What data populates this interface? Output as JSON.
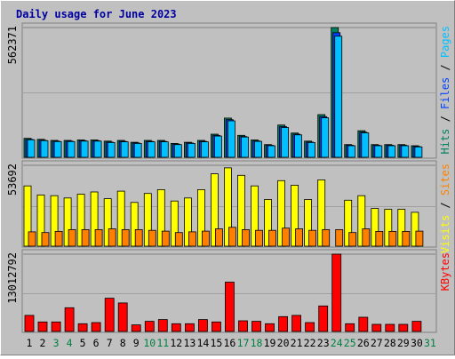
{
  "chart_data": {
    "type": "bar",
    "title": "Daily usage for June 2023",
    "days": [
      "1",
      "2",
      "3",
      "4",
      "5",
      "6",
      "7",
      "8",
      "9",
      "10",
      "11",
      "12",
      "13",
      "14",
      "15",
      "16",
      "17",
      "18",
      "19",
      "20",
      "21",
      "22",
      "23",
      "24",
      "25",
      "26",
      "27",
      "28",
      "29",
      "30",
      "31"
    ],
    "weekend_days": [
      "3",
      "4",
      "10",
      "11",
      "17",
      "18",
      "24",
      "25",
      "31"
    ],
    "colors": {
      "hits": "#00805c",
      "files": "#0040ff",
      "pages": "#00c0ff",
      "visits": "#ffff00",
      "sites": "#ff8000",
      "kbytes": "#ff0000",
      "weekend_label": "#008040"
    },
    "panels": [
      {
        "id": "pages-files-hits",
        "max_label": "562371",
        "ymax": 562371,
        "legend": [
          {
            "text": "Hits",
            "color": "#00805c"
          },
          {
            "text": " / ",
            "color": "#000000"
          },
          {
            "text": "Files",
            "color": "#0040ff"
          },
          {
            "text": " / ",
            "color": "#000000"
          },
          {
            "text": "Pages",
            "color": "#00c0ff"
          }
        ],
        "series": [
          {
            "name": "Hits",
            "values": [
              82000,
              78000,
              73000,
              73000,
              75000,
              75000,
              70000,
              73000,
              65000,
              73000,
              73000,
              60000,
              65000,
              73000,
              100000,
              170000,
              95000,
              75000,
              55000,
              140000,
              105000,
              70000,
              185000,
              562371,
              55000,
              115000,
              55000,
              55000,
              55000,
              50000,
              0
            ]
          },
          {
            "name": "Files",
            "values": [
              78000,
              74000,
              70000,
              70000,
              72000,
              72000,
              66000,
              69000,
              62000,
              69000,
              69000,
              57000,
              62000,
              69000,
              95000,
              163000,
              90000,
              71000,
              52000,
              133000,
              100000,
              66000,
              176000,
              540000,
              52000,
              109000,
              52000,
              52000,
              52000,
              47000,
              0
            ]
          },
          {
            "name": "Pages",
            "values": [
              76000,
              72000,
              68000,
              68000,
              70000,
              70000,
              64000,
              67000,
              60000,
              67000,
              67000,
              55000,
              60000,
              67000,
              92000,
              158000,
              88000,
              69000,
              50000,
              129000,
              97000,
              64000,
              171000,
              525000,
              50000,
              106000,
              50000,
              50000,
              50000,
              45000,
              0
            ]
          }
        ]
      },
      {
        "id": "visits-sites",
        "max_label": "53692",
        "ymax": 53692,
        "legend": [
          {
            "text": "Visits",
            "color": "#ffff00"
          },
          {
            "text": " / ",
            "color": "#000000"
          },
          {
            "text": "Sites",
            "color": "#ff8000"
          }
        ],
        "series": [
          {
            "name": "Visits",
            "values": [
              40000,
              34000,
              33500,
              32000,
              34500,
              36000,
              31500,
              36500,
              29000,
              35000,
              37500,
              30000,
              32000,
              37500,
              48000,
              52000,
              47000,
              40000,
              31000,
              43500,
              40500,
              31000,
              44000,
              0,
              30500,
              33500,
              25000,
              24500,
              24500,
              22500,
              0
            ]
          },
          {
            "name": "Sites",
            "values": [
              9500,
              9000,
              9800,
              11000,
              11000,
              11000,
              11500,
              11000,
              11000,
              10500,
              10000,
              9000,
              9500,
              10000,
              11500,
              12500,
              11000,
              10500,
              10500,
              12000,
              11500,
              10500,
              11000,
              11000,
              9000,
              11500,
              9800,
              9800,
              9800,
              10000,
              0
            ]
          }
        ]
      },
      {
        "id": "kbytes",
        "max_label": "13012792",
        "ymax": 13012792,
        "legend": [
          {
            "text": "KBytes",
            "color": "#ff0000"
          }
        ],
        "series": [
          {
            "name": "KBytes",
            "values": [
              2700000,
              1600000,
              1600000,
              4000000,
              1300000,
              1500000,
              5600000,
              4800000,
              1100000,
              1700000,
              2000000,
              1300000,
              1300000,
              2000000,
              1600000,
              8300000,
              1800000,
              1700000,
              1300000,
              2500000,
              2700000,
              1500000,
              4300000,
              13012792,
              1300000,
              2400000,
              1200000,
              1200000,
              1200000,
              1700000,
              0
            ]
          }
        ]
      }
    ]
  }
}
